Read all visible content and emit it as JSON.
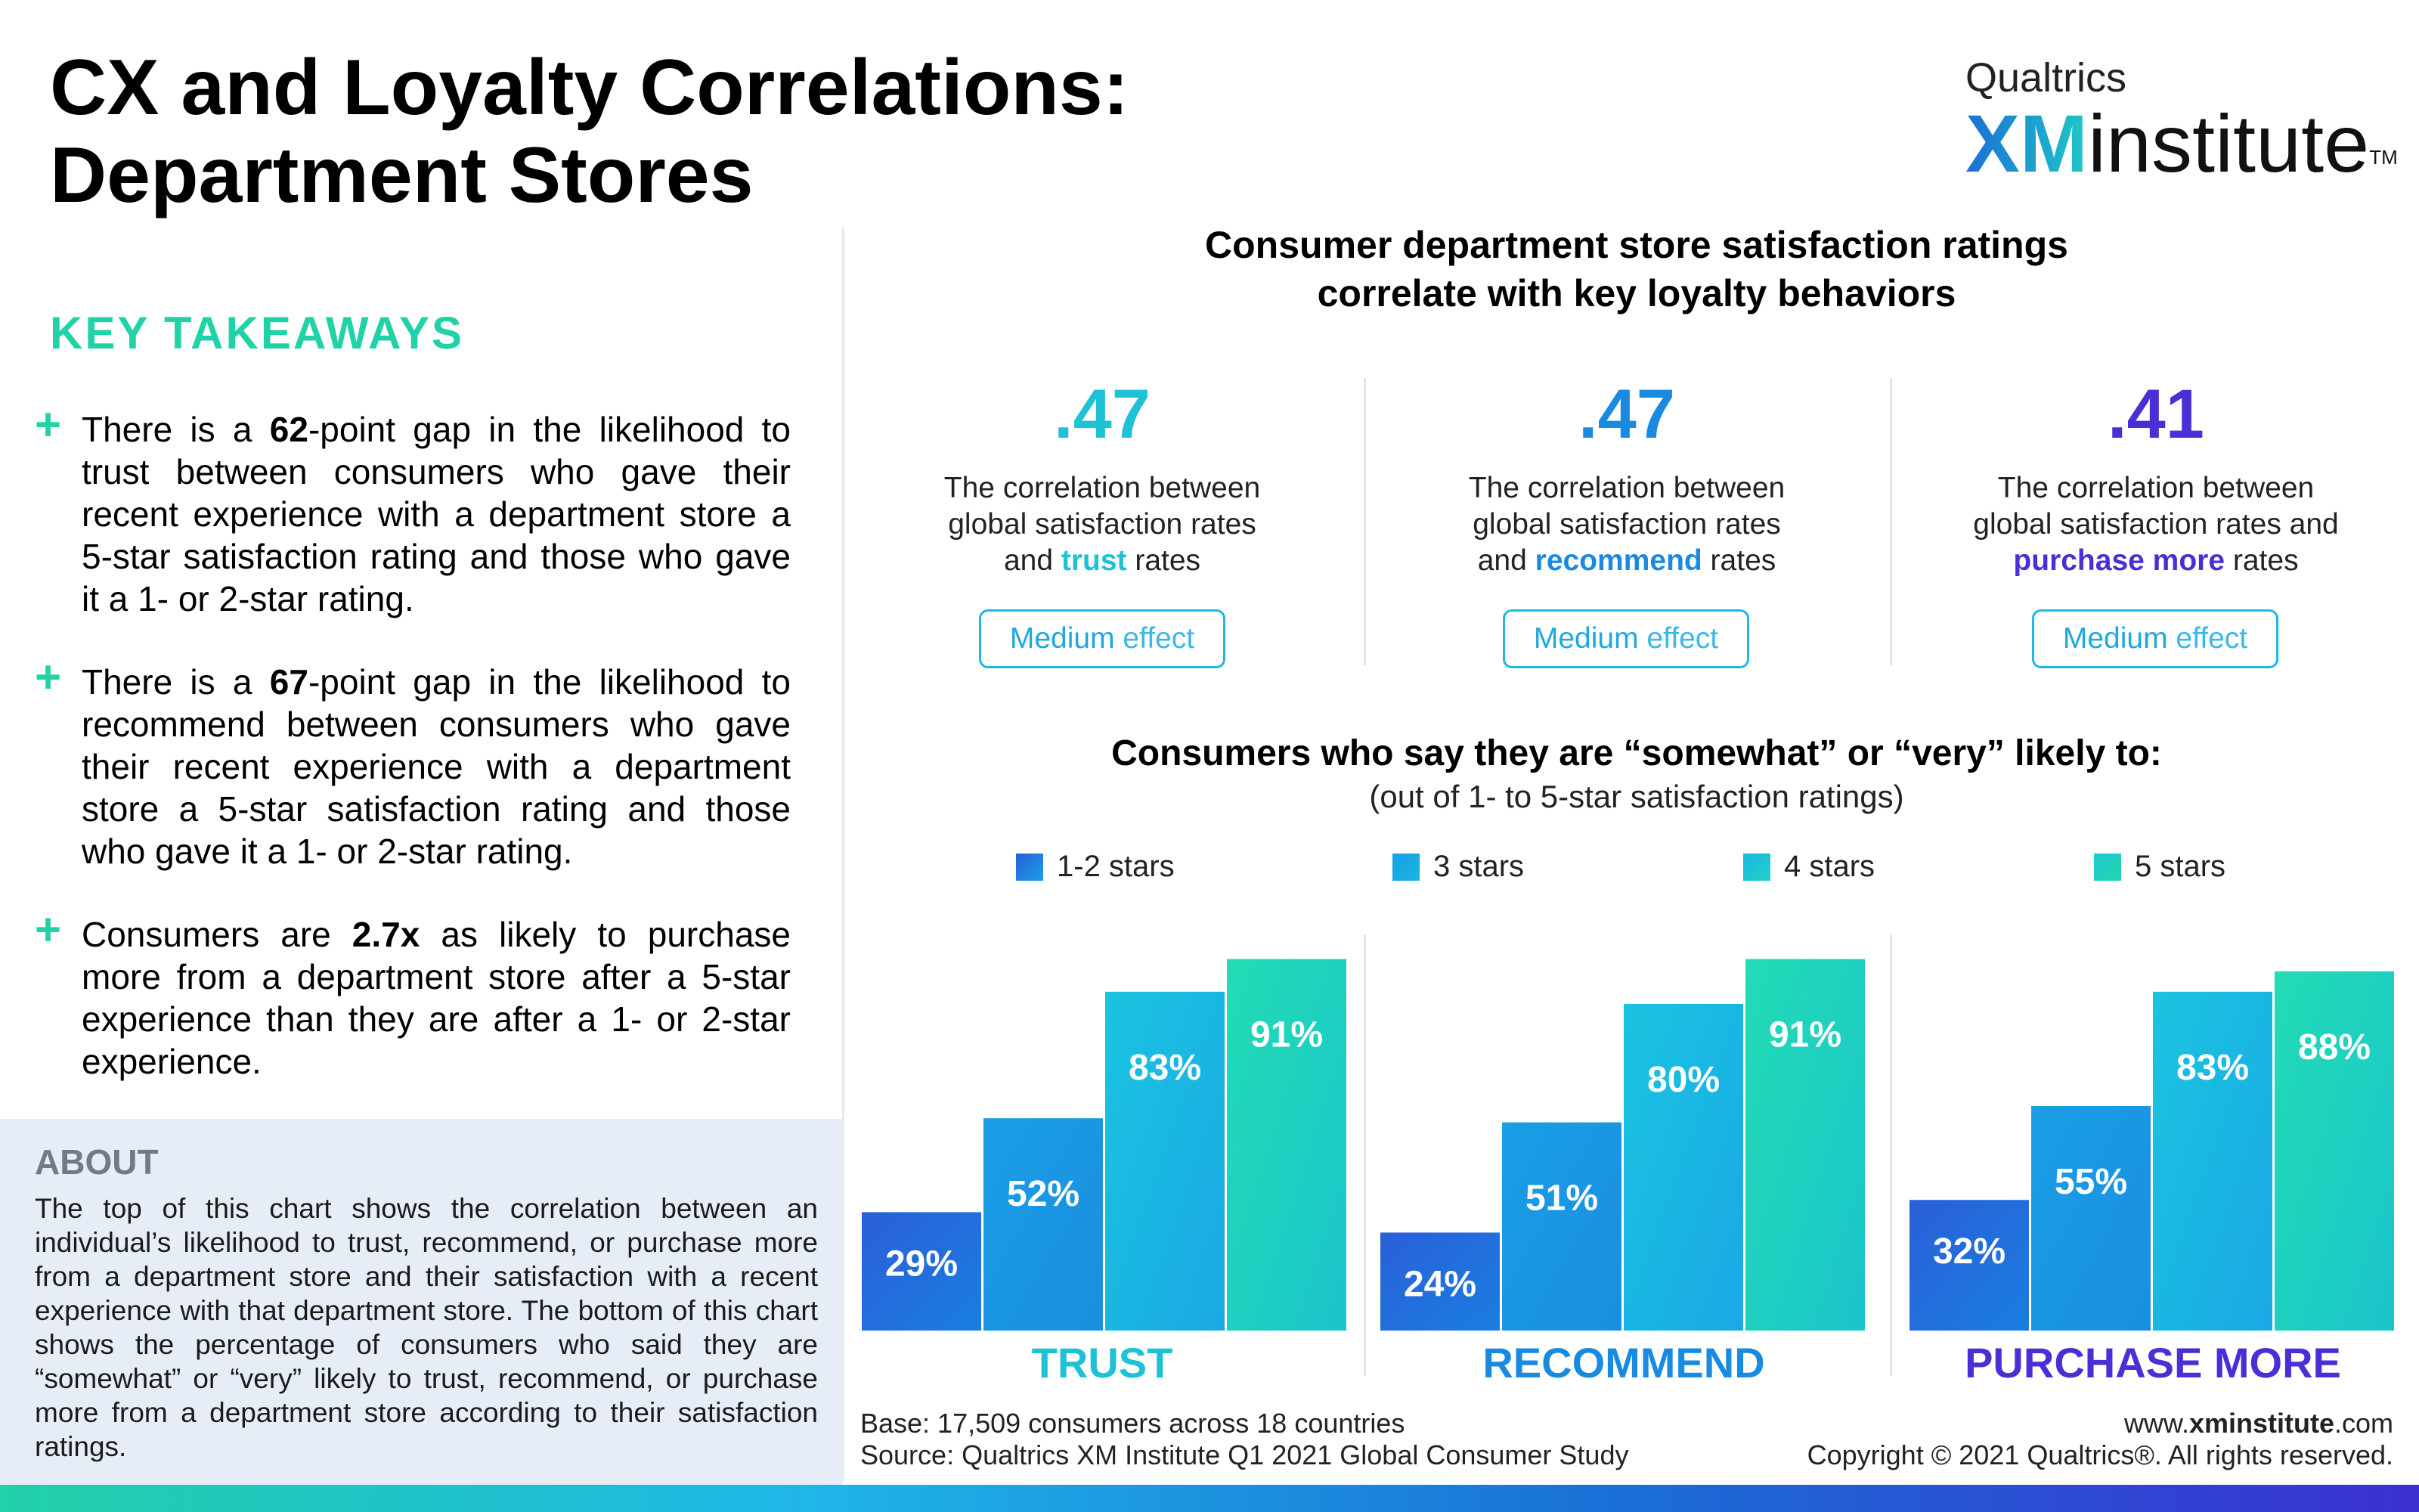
{
  "header": {
    "title_line1": "CX and Loyalty Correlations:",
    "title_line2": "Department Stores",
    "logo_top": "Qualtrics",
    "logo_xm": "XM",
    "logo_institute": "institute",
    "logo_tm": "TM"
  },
  "takeaways": {
    "heading": "KEY TAKEAWAYS",
    "items": [
      {
        "pre": "There is a ",
        "bold": "62",
        "post": "-point gap in the likelihood to trust between consumers who gave their recent experience with a department store a 5-star satisfaction rating and those who gave it a 1- or 2-star rating."
      },
      {
        "pre": "There is a ",
        "bold": "67",
        "post": "-point gap in the likelihood to recommend between consumers who gave their recent experience with a department store a 5-star satisfaction rating and those who gave it a 1- or 2-star rating."
      },
      {
        "pre": "Consumers are ",
        "bold": "2.7x",
        "post": " as likely to purchase more from a department store after a 5-star experience than they are after a 1- or 2-star experience."
      }
    ]
  },
  "about": {
    "heading": "ABOUT",
    "text": "The top of this chart shows the correlation between an individual’s likelihood to trust, recommend, or purchase more from a department store and their satisfaction with a recent experience with that department store. The bottom of this chart shows the percentage of consumers who said they are “somewhat” or “very” likely to trust, recommend, or purchase more from a department store according to their satisfaction ratings."
  },
  "correlations": {
    "title_line1": "Consumer department store satisfaction ratings",
    "title_line2": "correlate with key loyalty behaviors",
    "items": [
      {
        "value": ".47",
        "line1": "The correlation between",
        "line2": "global satisfaction rates",
        "line3_pre": "and ",
        "keyword": "trust",
        "line3_post": " rates",
        "effect_a": "Medium",
        "effect_b": " effect",
        "color": "#1fc1d6"
      },
      {
        "value": ".47",
        "line1": "The correlation between",
        "line2": "global satisfaction rates",
        "line3_pre": "and ",
        "keyword": "recommend",
        "line3_post": " rates",
        "effect_a": "Medium",
        "effect_b": " effect",
        "color": "#1a8ae0"
      },
      {
        "value": ".41",
        "line1": "The correlation between",
        "line2": "global satisfaction rates and",
        "line3_pre": "",
        "keyword": "purchase more",
        "line3_post": " rates",
        "effect_a": "Medium",
        "effect_b": " effect",
        "color": "#4a2fd6"
      }
    ]
  },
  "bars_section": {
    "title": "Consumers who say they are “somewhat” or “very” likely to:",
    "subtitle": "(out of 1- to 5-star satisfaction ratings)"
  },
  "chart_data": {
    "type": "bar",
    "categories": [
      "TRUST",
      "RECOMMEND",
      "PURCHASE MORE"
    ],
    "category_colors": [
      "#1fc1d6",
      "#1a8ae0",
      "#4a2fd6"
    ],
    "series": [
      {
        "name": "1-2 stars",
        "values": [
          29,
          24,
          32
        ],
        "labels": [
          "29%",
          "24%",
          "32%"
        ],
        "color": "#2a5fd8"
      },
      {
        "name": "3 stars",
        "values": [
          52,
          51,
          55
        ],
        "labels": [
          "52%",
          "51%",
          "55%"
        ],
        "color": "#1a9ee6"
      },
      {
        "name": "4 stars",
        "values": [
          83,
          80,
          83
        ],
        "labels": [
          "83%",
          "80%",
          "83%"
        ],
        "color": "#1ab7e0"
      },
      {
        "name": "5 stars",
        "values": [
          91,
          91,
          88
        ],
        "labels": [
          "91%",
          "91%",
          "88%"
        ],
        "color": "#21d6b0"
      }
    ],
    "ylim": [
      0,
      100
    ]
  },
  "footer": {
    "base": "Base: 17,509 consumers across 18 countries",
    "source": "Source: Qualtrics XM Institute Q1 2021 Global Consumer Study",
    "url_pre": "www.",
    "url_bold": "xminstitute",
    "url_post": ".com",
    "copyright": "Copyright © 2021 Qualtrics®. All rights reserved."
  }
}
